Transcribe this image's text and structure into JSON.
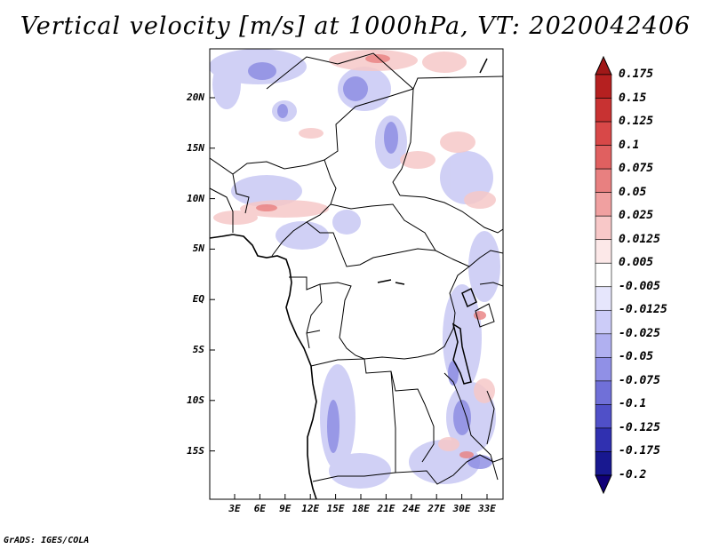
{
  "title": "Vertical velocity [m/s] at 1000hPa, VT: 2020042406",
  "footer": "GrADS: IGES/COLA",
  "lat_labels": [
    "20N",
    "15N",
    "10N",
    "5N",
    "EQ",
    "5S",
    "10S",
    "15S"
  ],
  "lon_labels": [
    "3E",
    "6E",
    "9E",
    "12E",
    "15E",
    "18E",
    "21E",
    "24E",
    "27E",
    "30E",
    "33E"
  ],
  "colorbar": {
    "labels": [
      "0.175",
      "0.15",
      "0.125",
      "0.1",
      "0.075",
      "0.05",
      "0.025",
      "0.0125",
      "0.005",
      "-0.005",
      "-0.0125",
      "-0.025",
      "-0.05",
      "-0.075",
      "-0.1",
      "-0.125",
      "-0.175",
      "-0.2"
    ],
    "colors": [
      "#a01818",
      "#b52020",
      "#c83232",
      "#d84848",
      "#e06060",
      "#e88080",
      "#f0a0a0",
      "#f8c8c8",
      "#fce8e8",
      "#ffffff",
      "#e6e6fc",
      "#ccccf8",
      "#b0b0f0",
      "#9090e6",
      "#7070d8",
      "#5050c8",
      "#3030b0",
      "#181890",
      "#100078"
    ]
  }
}
